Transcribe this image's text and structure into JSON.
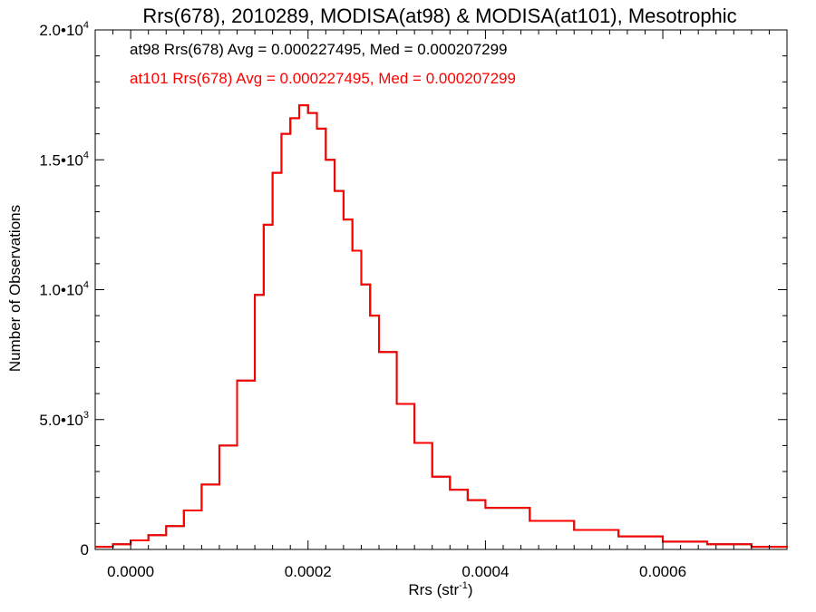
{
  "chart_data": {
    "type": "line",
    "step": true,
    "title": "Rrs(678), 2010289, MODISA(at98) & MODISA(at101), Mesotrophic",
    "xlabel_base": "Rrs (str",
    "xlabel_sup": "-1",
    "xlabel_end": ")",
    "ylabel": "Number of Observations",
    "xlim": [
      -4e-05,
      0.00074
    ],
    "ylim": [
      0,
      20000
    ],
    "x_ticks": [
      0.0,
      0.0002,
      0.0004,
      0.0006
    ],
    "x_tick_labels": [
      "0.0000",
      "0.0002",
      "0.0004",
      "0.0006"
    ],
    "y_ticks": [
      {
        "value": 0,
        "base": "0",
        "exp": ""
      },
      {
        "value": 5000,
        "base": "5.0•10",
        "exp": "3"
      },
      {
        "value": 10000,
        "base": "1.0•10",
        "exp": "4"
      },
      {
        "value": 15000,
        "base": "1.5•10",
        "exp": "4"
      },
      {
        "value": 20000,
        "base": "2.0•10",
        "exp": "4"
      }
    ],
    "annotations": [
      {
        "text": "at98 Rrs(678) Avg = 0.000227495, Med = 0.000207299",
        "color": "#000000"
      },
      {
        "text": "at101 Rrs(678) Avg = 0.000227495, Med = 0.000207299",
        "color": "#ff0000"
      }
    ],
    "series": [
      {
        "name": "at98",
        "color": "#000000",
        "x": [
          -4e-05,
          -2e-05,
          0.0,
          2e-05,
          4e-05,
          6e-05,
          8e-05,
          0.0001,
          0.00012,
          0.00014,
          0.00015,
          0.00016,
          0.00017,
          0.00018,
          0.00019,
          0.0002,
          0.00021,
          0.00022,
          0.00023,
          0.00024,
          0.00025,
          0.00026,
          0.00027,
          0.00028,
          0.0003,
          0.00032,
          0.00034,
          0.00036,
          0.00038,
          0.0004,
          0.00045,
          0.0005,
          0.00055,
          0.0006,
          0.00065,
          0.0007,
          0.00074
        ],
        "y": [
          100,
          200,
          350,
          550,
          900,
          1500,
          2500,
          4000,
          6500,
          9800,
          12500,
          14500,
          16000,
          16600,
          17100,
          16800,
          16200,
          15000,
          13800,
          12700,
          11500,
          10200,
          9000,
          7600,
          5600,
          4100,
          2800,
          2300,
          1900,
          1600,
          1100,
          750,
          500,
          300,
          200,
          100,
          80
        ]
      },
      {
        "name": "at101",
        "color": "#ff0000",
        "x": [
          -4e-05,
          -2e-05,
          0.0,
          2e-05,
          4e-05,
          6e-05,
          8e-05,
          0.0001,
          0.00012,
          0.00014,
          0.00015,
          0.00016,
          0.00017,
          0.00018,
          0.00019,
          0.0002,
          0.00021,
          0.00022,
          0.00023,
          0.00024,
          0.00025,
          0.00026,
          0.00027,
          0.00028,
          0.0003,
          0.00032,
          0.00034,
          0.00036,
          0.00038,
          0.0004,
          0.00045,
          0.0005,
          0.00055,
          0.0006,
          0.00065,
          0.0007,
          0.00074
        ],
        "y": [
          100,
          200,
          350,
          550,
          900,
          1500,
          2500,
          4000,
          6500,
          9800,
          12500,
          14500,
          16000,
          16600,
          17100,
          16800,
          16200,
          15000,
          13800,
          12700,
          11500,
          10200,
          9000,
          7600,
          5600,
          4100,
          2800,
          2300,
          1900,
          1600,
          1100,
          750,
          500,
          300,
          200,
          100,
          80
        ]
      }
    ]
  }
}
